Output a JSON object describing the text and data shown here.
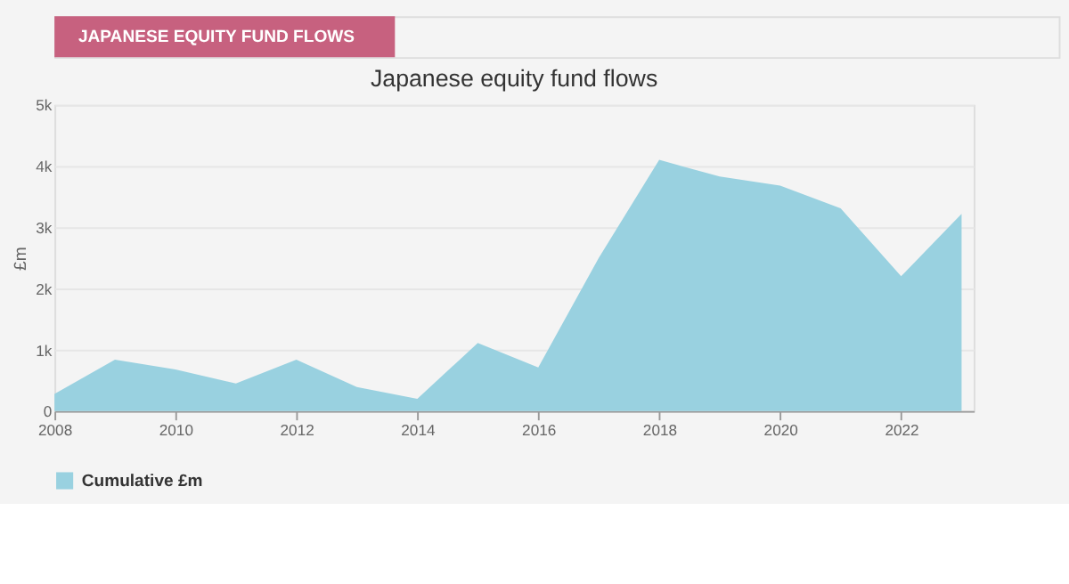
{
  "chart_data": {
    "type": "area",
    "title": "Japanese equity fund flows",
    "ylabel": "£m",
    "annotations": [
      "JAPANESE EQUITY FUND FLOWS"
    ],
    "x": [
      2008,
      2009,
      2010,
      2011,
      2012,
      2013,
      2014,
      2015,
      2016,
      2017,
      2018,
      2019,
      2020,
      2021,
      2022,
      2023
    ],
    "series": [
      {
        "name": "Cumulative £m",
        "color": "#99d1e0",
        "values": [
          280,
          840,
          680,
          450,
          840,
          390,
          200,
          1110,
          710,
          2500,
          4100,
          3830,
          3680,
          3310,
          2200,
          3220
        ]
      }
    ],
    "xlim": [
      2008,
      2023.2
    ],
    "xticks": [
      2008,
      2010,
      2012,
      2014,
      2016,
      2018,
      2020,
      2022
    ],
    "ylim": [
      0,
      5000
    ],
    "yticks": [
      {
        "value": 0,
        "label": "0"
      },
      {
        "value": 1000,
        "label": "1k"
      },
      {
        "value": 2000,
        "label": "2k"
      },
      {
        "value": 3000,
        "label": "3k"
      },
      {
        "value": 4000,
        "label": "4k"
      },
      {
        "value": 5000,
        "label": "5k"
      }
    ],
    "grid": "y",
    "legend": "bottom"
  }
}
